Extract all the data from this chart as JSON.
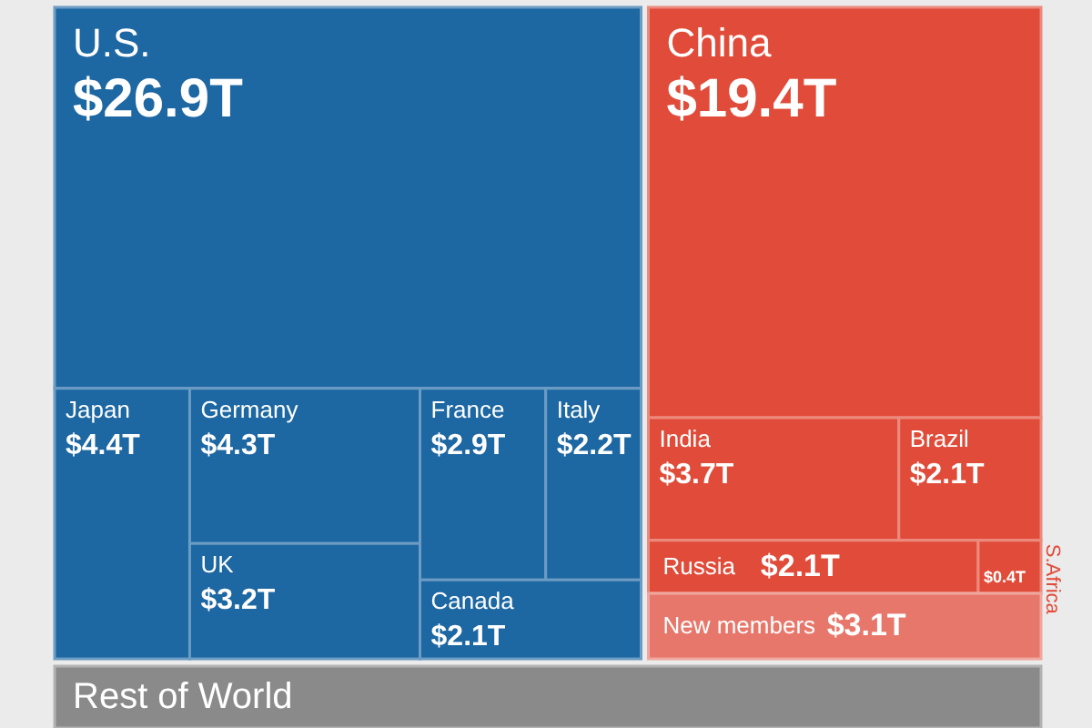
{
  "chart_data": {
    "type": "other",
    "categories": [
      "U.S.",
      "Japan",
      "Germany",
      "UK",
      "France",
      "Italy",
      "Canada",
      "China",
      "India",
      "Brazil",
      "Russia",
      "S.Africa",
      "New members",
      "Rest of World"
    ],
    "values": [
      26.9,
      4.4,
      4.3,
      3.2,
      2.9,
      2.2,
      2.1,
      19.4,
      3.7,
      2.1,
      2.1,
      0.4,
      3.1,
      null
    ],
    "value_labels": [
      "$26.9T",
      "$4.4T",
      "$4.3T",
      "$3.2T",
      "$2.9T",
      "$2.2T",
      "$2.1T",
      "$19.4T",
      "$3.7T",
      "$2.1T",
      "$2.1T",
      "$0.4T",
      "$3.1T",
      null
    ],
    "colors": [
      "#1d67a2",
      "#1d67a2",
      "#1d67a2",
      "#1d67a2",
      "#1d67a2",
      "#1d67a2",
      "#1d67a2",
      "#e14b39",
      "#e14b39",
      "#e14b39",
      "#e14b39",
      "#e14b39",
      "#e8776b",
      "#8a8a8a"
    ]
  }
}
